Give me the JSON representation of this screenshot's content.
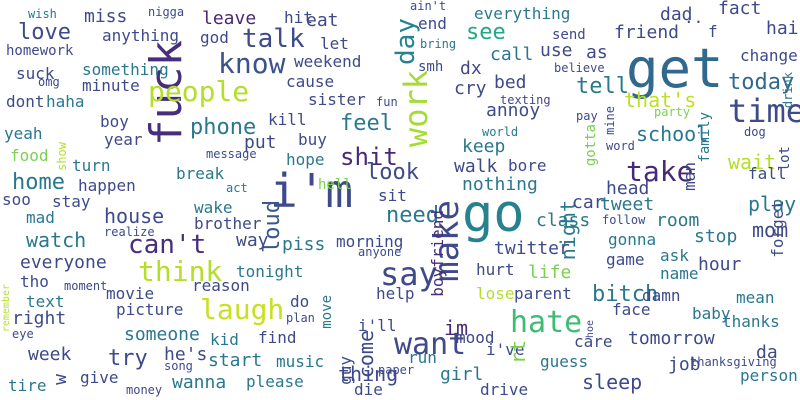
{
  "words": [
    {
      "text": "get",
      "color": "#31688e"
    },
    {
      "text": "i'm",
      "color": "#3e4a89"
    },
    {
      "text": "go",
      "color": "#26828e"
    },
    {
      "text": "fuck",
      "color": "#472d7b"
    },
    {
      "text": "know",
      "color": "#3b528b"
    },
    {
      "text": "people",
      "color": "#b5de2b"
    },
    {
      "text": "time",
      "color": "#3e4a89"
    },
    {
      "text": "make",
      "color": "#3e4a89"
    },
    {
      "text": "work",
      "color": "#a5db36"
    },
    {
      "text": "say",
      "color": "#3e4a89"
    },
    {
      "text": "think",
      "color": "#b5de2b"
    },
    {
      "text": "laugh",
      "color": "#c8e020"
    },
    {
      "text": "want",
      "color": "#3e4a89"
    },
    {
      "text": "hate",
      "color": "#3dbc74"
    },
    {
      "text": "can't",
      "color": "#472d7b"
    },
    {
      "text": "take",
      "color": "#482878"
    },
    {
      "text": "day",
      "color": "#26828e"
    },
    {
      "text": "talk",
      "color": "#3e4a89"
    },
    {
      "text": "today",
      "color": "#31688e"
    },
    {
      "text": "shit",
      "color": "#482878"
    },
    {
      "text": "look",
      "color": "#3e4a89"
    },
    {
      "text": "need",
      "color": "#2a788e"
    },
    {
      "text": "loud",
      "color": "#38588c"
    },
    {
      "text": "feel",
      "color": "#2a788e"
    },
    {
      "text": "phone",
      "color": "#2a788e"
    },
    {
      "text": "night",
      "color": "#2a788e"
    },
    {
      "text": "school",
      "color": "#2a788e"
    },
    {
      "text": "see",
      "color": "#22a884"
    },
    {
      "text": "tell",
      "color": "#2a788e"
    },
    {
      "text": "boyfriend",
      "color": "#472d7b"
    },
    {
      "text": "that's",
      "color": "#bddf26"
    },
    {
      "text": "wait",
      "color": "#b5de2b"
    },
    {
      "text": "play",
      "color": "#2a788e"
    },
    {
      "text": "come",
      "color": "#3e4a89"
    },
    {
      "text": "im",
      "color": "#482878"
    },
    {
      "text": "bitch",
      "color": "#2a788e"
    },
    {
      "text": "sleep",
      "color": "#3e4a89"
    },
    {
      "text": "try",
      "color": "#3e4a89"
    },
    {
      "text": "home",
      "color": "#2a788e"
    },
    {
      "text": "watch",
      "color": "#2a788e"
    },
    {
      "text": "house",
      "color": "#3e4a89"
    },
    {
      "text": "thing",
      "color": "#3e4a89"
    },
    {
      "text": "love",
      "color": "#3e4a89"
    },
    {
      "text": "mom",
      "color": "#3e4a89"
    },
    {
      "text": "everyone",
      "color": "#3e4a89"
    },
    {
      "text": "week",
      "color": "#3e4a89"
    },
    {
      "text": "someone",
      "color": "#2a788e"
    },
    {
      "text": "tomorrow",
      "color": "#3e4a89"
    },
    {
      "text": "leave",
      "color": "#482878"
    },
    {
      "text": "dad",
      "color": "#3e4a89"
    },
    {
      "text": "friend",
      "color": "#3e4a89"
    },
    {
      "text": "fact",
      "color": "#3e4a89"
    },
    {
      "text": "hair",
      "color": "#3e4a89"
    },
    {
      "text": "change",
      "color": "#3e4a89"
    },
    {
      "text": "miss",
      "color": "#3e4a89"
    },
    {
      "text": "everything",
      "color": "#2a788e"
    },
    {
      "text": "call",
      "color": "#2a788e"
    },
    {
      "text": "use",
      "color": "#3e4a89"
    },
    {
      "text": "as",
      "color": "#3e4a89"
    },
    {
      "text": "cry",
      "color": "#3e4a89"
    },
    {
      "text": "dx",
      "color": "#3e4a89"
    },
    {
      "text": "bed",
      "color": "#3e4a89"
    },
    {
      "text": "annoy",
      "color": "#3e4a89"
    },
    {
      "text": "keep",
      "color": "#2a788e"
    },
    {
      "text": "walk",
      "color": "#3e4a89"
    },
    {
      "text": "bore",
      "color": "#3e4a89"
    },
    {
      "text": "nothing",
      "color": "#2a788e"
    },
    {
      "text": "head",
      "color": "#3e4a89"
    },
    {
      "text": "tweet",
      "color": "#2a788e"
    },
    {
      "text": "car",
      "color": "#3e4a89"
    },
    {
      "text": "room",
      "color": "#2a788e"
    },
    {
      "text": "class",
      "color": "#2a788e"
    },
    {
      "text": "gonna",
      "color": "#2a788e"
    },
    {
      "text": "stop",
      "color": "#2a788e"
    },
    {
      "text": "twitter",
      "color": "#3e4a89"
    },
    {
      "text": "life",
      "color": "#7ad151"
    },
    {
      "text": "hurt",
      "color": "#3e4a89"
    },
    {
      "text": "game",
      "color": "#3e4a89"
    },
    {
      "text": "ask",
      "color": "#2a788e"
    },
    {
      "text": "hour",
      "color": "#3e4a89"
    },
    {
      "text": "name",
      "color": "#2a788e"
    },
    {
      "text": "damn",
      "color": "#3e4a89"
    },
    {
      "text": "mean",
      "color": "#2a788e"
    },
    {
      "text": "face",
      "color": "#3e4a89"
    },
    {
      "text": "baby",
      "color": "#2a788e"
    },
    {
      "text": "thanks",
      "color": "#2a788e"
    },
    {
      "text": "job",
      "color": "#3e4a89"
    },
    {
      "text": "da",
      "color": "#3e4a89"
    },
    {
      "text": "person",
      "color": "#2a788e"
    },
    {
      "text": "guess",
      "color": "#2a788e"
    },
    {
      "text": "care",
      "color": "#3e4a89"
    },
    {
      "text": "i've",
      "color": "#3e4a89"
    },
    {
      "text": "girl",
      "color": "#2a788e"
    },
    {
      "text": "drive",
      "color": "#3e4a89"
    },
    {
      "text": "mood",
      "color": "#3e4a89"
    },
    {
      "text": "parent",
      "color": "#3e4a89"
    },
    {
      "text": "lose",
      "color": "#b5de2b"
    },
    {
      "text": "help",
      "color": "#3e4a89"
    },
    {
      "text": "run",
      "color": "#2a788e"
    },
    {
      "text": "die",
      "color": "#3e4a89"
    },
    {
      "text": "i'll",
      "color": "#3e4a89"
    },
    {
      "text": "guy",
      "color": "#3e4a89"
    },
    {
      "text": "move",
      "color": "#2a788e"
    },
    {
      "text": "morning",
      "color": "#3e4a89"
    },
    {
      "text": "piss",
      "color": "#2a788e"
    },
    {
      "text": "tonight",
      "color": "#2a788e"
    },
    {
      "text": "way",
      "color": "#3e4a89"
    },
    {
      "text": "reason",
      "color": "#3e4a89"
    },
    {
      "text": "do",
      "color": "#3e4a89"
    },
    {
      "text": "find",
      "color": "#3e4a89"
    },
    {
      "text": "music",
      "color": "#2a788e"
    },
    {
      "text": "start",
      "color": "#2a788e"
    },
    {
      "text": "please",
      "color": "#2a788e"
    },
    {
      "text": "wanna",
      "color": "#2a788e"
    },
    {
      "text": "he's",
      "color": "#3e4a89"
    },
    {
      "text": "kid",
      "color": "#2a788e"
    },
    {
      "text": "give",
      "color": "#3e4a89"
    },
    {
      "text": "tire",
      "color": "#2a788e"
    },
    {
      "text": "w",
      "color": "#3e4a89"
    },
    {
      "text": "right",
      "color": "#3e4a89"
    },
    {
      "text": "text",
      "color": "#2a788e"
    },
    {
      "text": "tho",
      "color": "#3e4a89"
    },
    {
      "text": "movie",
      "color": "#3e4a89"
    },
    {
      "text": "picture",
      "color": "#3e4a89"
    },
    {
      "text": "wake",
      "color": "#2a788e"
    },
    {
      "text": "brother",
      "color": "#3e4a89"
    },
    {
      "text": "break",
      "color": "#2a788e"
    },
    {
      "text": "happen",
      "color": "#3e4a89"
    },
    {
      "text": "stay",
      "color": "#3e4a89"
    },
    {
      "text": "turn",
      "color": "#2a788e"
    },
    {
      "text": "food",
      "color": "#7ad151"
    },
    {
      "text": "yeah",
      "color": "#2a788e"
    },
    {
      "text": "year",
      "color": "#3e4a89"
    },
    {
      "text": "boy",
      "color": "#3e4a89"
    },
    {
      "text": "minute",
      "color": "#3e4a89"
    },
    {
      "text": "haha",
      "color": "#2a788e"
    },
    {
      "text": "dont",
      "color": "#3e4a89"
    },
    {
      "text": "something",
      "color": "#2a788e"
    },
    {
      "text": "anything",
      "color": "#3e4a89"
    },
    {
      "text": "god",
      "color": "#3e4a89"
    },
    {
      "text": "homework",
      "color": "#3e4a89"
    },
    {
      "text": "suck",
      "color": "#3e4a89"
    },
    {
      "text": "hit",
      "color": "#3e4a89"
    },
    {
      "text": "eat",
      "color": "#3e4a89"
    },
    {
      "text": "let",
      "color": "#3e4a89"
    },
    {
      "text": "weekend",
      "color": "#3e4a89"
    },
    {
      "text": "cause",
      "color": "#3e4a89"
    },
    {
      "text": "sister",
      "color": "#3e4a89"
    },
    {
      "text": "kill",
      "color": "#3e4a89"
    },
    {
      "text": "put",
      "color": "#3e4a89"
    },
    {
      "text": "buy",
      "color": "#3e4a89"
    },
    {
      "text": "hope",
      "color": "#2a788e"
    },
    {
      "text": "hell",
      "color": "#7ad151"
    },
    {
      "text": "sit",
      "color": "#3e4a89"
    },
    {
      "text": "end",
      "color": "#3e4a89"
    },
    {
      "text": "send",
      "color": "#3e4a89"
    },
    {
      "text": "smh",
      "color": "#3e4a89"
    },
    {
      "text": "bring",
      "color": "#2a788e"
    },
    {
      "text": "ain't",
      "color": "#3e4a89"
    },
    {
      "text": "believe",
      "color": "#3e4a89"
    },
    {
      "text": "texting",
      "color": "#3e4a89"
    },
    {
      "text": "world",
      "color": "#2a788e"
    },
    {
      "text": "pay",
      "color": "#3e4a89"
    },
    {
      "text": "mine",
      "color": "#3e4a89"
    },
    {
      "text": "party",
      "color": "#7ad151"
    },
    {
      "text": "dog",
      "color": "#3e4a89"
    },
    {
      "text": "word",
      "color": "#3e4a89"
    },
    {
      "text": "gotta",
      "color": "#7ad151"
    },
    {
      "text": "family",
      "color": "#2a788e"
    },
    {
      "text": "man",
      "color": "#3e4a89"
    },
    {
      "text": "fall",
      "color": "#3e4a89"
    },
    {
      "text": "lot",
      "color": "#3e4a89"
    },
    {
      "text": "forget",
      "color": "#3e4a89"
    },
    {
      "text": "f",
      "color": "#3e4a89"
    },
    {
      "text": "drink",
      "color": "#2a788e"
    },
    {
      "text": "..",
      "color": "#3e4a89"
    },
    {
      "text": "wish",
      "color": "#2a788e"
    },
    {
      "text": "nigga",
      "color": "#3e4a89"
    },
    {
      "text": "omg",
      "color": "#3e4a89"
    },
    {
      "text": "show",
      "color": "#b5de2b"
    },
    {
      "text": "message",
      "color": "#3e4a89"
    },
    {
      "text": "act",
      "color": "#2a788e"
    },
    {
      "text": "follow",
      "color": "#3e4a89"
    },
    {
      "text": "realize",
      "color": "#3e4a89"
    },
    {
      "text": "mad",
      "color": "#2a788e"
    },
    {
      "text": "soo",
      "color": "#3e4a89"
    },
    {
      "text": "remember",
      "color": "#b5de2b"
    },
    {
      "text": "moment",
      "color": "#3e4a89"
    },
    {
      "text": "eye",
      "color": "#3e4a89"
    },
    {
      "text": "plan",
      "color": "#3e4a89"
    },
    {
      "text": "anyone",
      "color": "#3e4a89"
    },
    {
      "text": "paper",
      "color": "#3e4a89"
    },
    {
      "text": "song",
      "color": "#3e4a89"
    },
    {
      "text": "money",
      "color": "#3e4a89"
    },
    {
      "text": "fun",
      "color": "#3e4a89"
    },
    {
      "text": "hoe",
      "color": "#3e4a89"
    },
    {
      "text": "thanksgiving",
      "color": "#3e4a89"
    },
    {
      "text": "rt",
      "color": "#7ad151"
    }
  ]
}
